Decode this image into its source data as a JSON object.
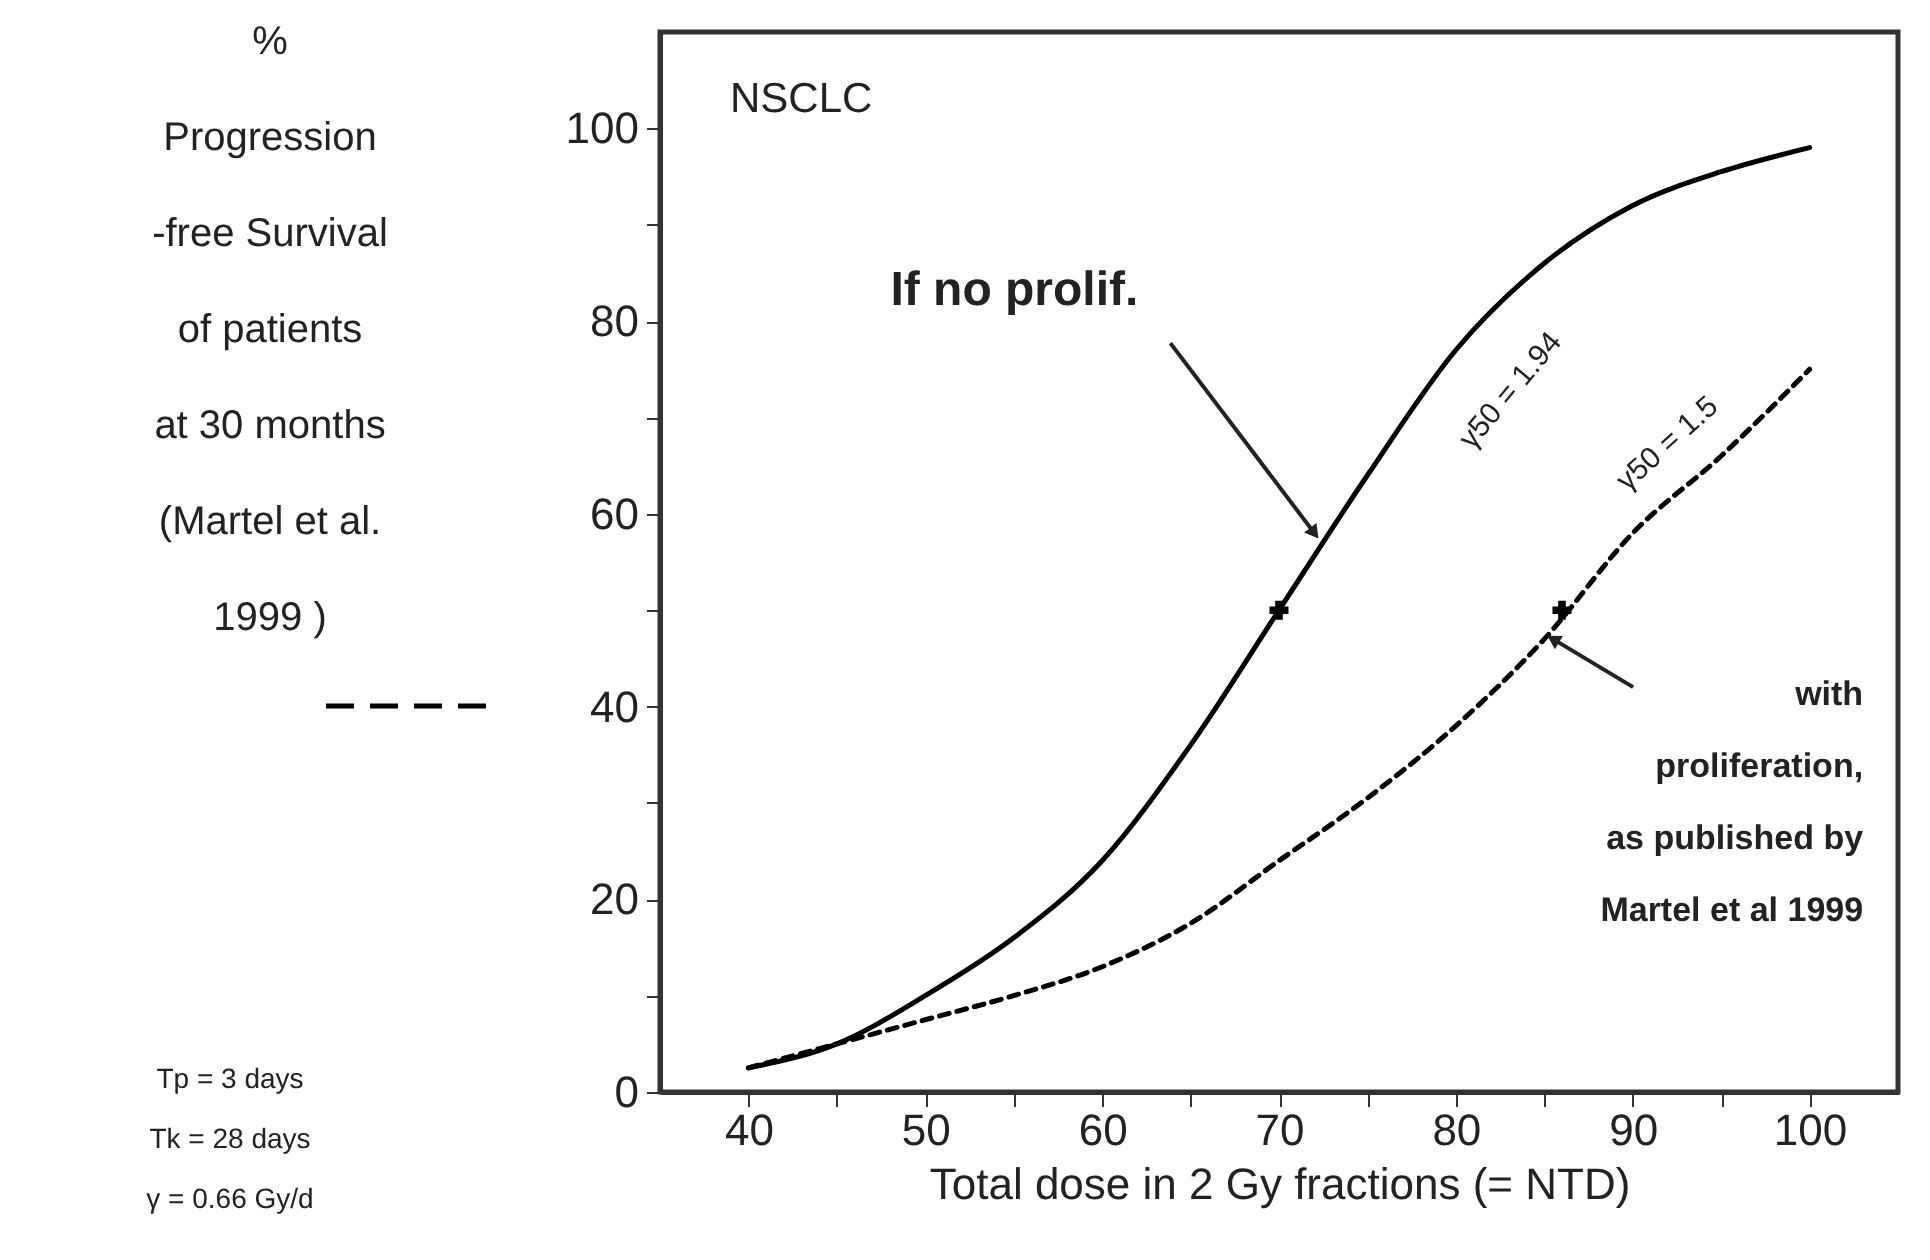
{
  "chart_data": {
    "type": "line",
    "xlabel": "Total dose  in  2 Gy  fractions  (= NTD)",
    "ylabel": "%\nProgression\n-free Survival\nof patients\nat 30 months\n(Martel et al.\n1999           )",
    "xlim": [
      35,
      105
    ],
    "xticks": [
      40,
      {
        "value": 45,
        "label": null
      },
      50,
      {
        "value": 55,
        "label": null
      },
      60,
      {
        "value": 65,
        "label": null
      },
      70,
      {
        "value": 75,
        "label": null
      },
      80,
      {
        "value": 85,
        "label": null
      },
      90,
      {
        "value": 95,
        "label": null
      },
      100
    ],
    "ylim": [
      0,
      110
    ],
    "yticks": [
      0,
      {
        "value": 10,
        "label": null
      },
      20,
      {
        "value": 30,
        "label": null
      },
      40,
      {
        "value": 50,
        "label": null
      },
      60,
      {
        "value": 70,
        "label": null
      },
      80,
      {
        "value": 90,
        "label": null
      },
      100
    ],
    "grid": false,
    "series": [
      {
        "type": "line",
        "color": "#000000",
        "line_style": "solid",
        "x": [
          40,
          45,
          50,
          55,
          60,
          65,
          70,
          75,
          80,
          85,
          90,
          95,
          100
        ],
        "values": [
          2.5,
          5,
          10,
          16,
          24,
          36,
          50,
          64,
          77,
          86,
          92,
          95.5,
          98
        ]
      },
      {
        "type": "line",
        "color": "#000000",
        "line_style": "dashed",
        "x": [
          40,
          45,
          50,
          55,
          60,
          65,
          70,
          75,
          80,
          85,
          90,
          95,
          100
        ],
        "values": [
          2.5,
          5,
          7.5,
          10,
          13,
          17.5,
          24,
          30.5,
          38,
          47,
          58,
          66,
          75
        ]
      },
      {
        "type": "scatter",
        "color": "#000000",
        "marker": "cross",
        "x": [
          70,
          86
        ],
        "values": [
          50,
          50
        ]
      }
    ],
    "annotations": [
      "NSCLC",
      "Tp = 3 days",
      "Tk = 28 days",
      "γ = 0.66 Gy/d",
      {
        "text": "If  no  prolif.",
        "x": 72,
        "y": 58
      },
      {
        "text": "γ50 = 1.94",
        "x": 80,
        "y": 77
      },
      {
        "text": "γ50 = 1.5",
        "x": 90,
        "y": 58
      },
      {
        "text": "with\nproliferation,\nas published by\nMartel et al 1999",
        "x": 85.5,
        "y": 47
      }
    ]
  }
}
